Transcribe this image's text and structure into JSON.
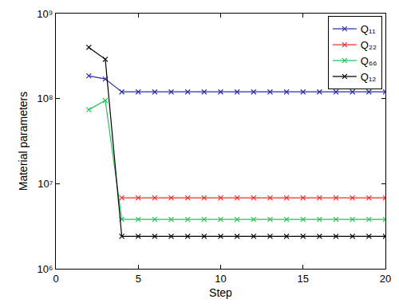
{
  "chart_data": {
    "type": "line",
    "x_label": "Step",
    "y_label": "Material parameters",
    "log": "y",
    "grid": false,
    "legend": "top right",
    "marker": "x",
    "line_style": "solid",
    "xlim": [
      0,
      20
    ],
    "xticks": [
      0,
      5,
      10,
      15,
      20
    ],
    "ylim": [
      1000000,
      1000000000
    ],
    "yticks": [
      {
        "value": 1000000,
        "label": "10⁶"
      },
      {
        "value": 10000000,
        "label": "10⁷"
      },
      {
        "value": 100000000,
        "label": "10⁸"
      },
      {
        "value": 1000000000,
        "label": "10⁹"
      }
    ],
    "series": [
      {
        "name": "Q₁₁",
        "color": "#2f2fa8",
        "x": [
          2,
          3,
          4,
          5,
          6,
          7,
          8,
          9,
          10,
          11,
          12,
          13,
          14,
          15,
          16,
          17,
          18,
          19,
          20
        ],
        "values": [
          185000000,
          170000000,
          120000000,
          120000000,
          120000000,
          120000000,
          120000000,
          120000000,
          120000000,
          120000000,
          120000000,
          120000000,
          120000000,
          120000000,
          120000000,
          120000000,
          120000000,
          120000000,
          120000000
        ]
      },
      {
        "name": "Q₂₂",
        "color": "#e8302a",
        "x": [
          4,
          5,
          6,
          7,
          8,
          9,
          10,
          11,
          12,
          13,
          14,
          15,
          16,
          17,
          18,
          19,
          20
        ],
        "values": [
          6800000,
          6800000,
          6800000,
          6800000,
          6800000,
          6800000,
          6800000,
          6800000,
          6800000,
          6800000,
          6800000,
          6800000,
          6800000,
          6800000,
          6800000,
          6800000,
          6800000
        ]
      },
      {
        "name": "Q₆₆",
        "color": "#22c45a",
        "x": [
          2,
          3,
          4,
          5,
          6,
          7,
          8,
          9,
          10,
          11,
          12,
          13,
          14,
          15,
          16,
          17,
          18,
          19,
          20
        ],
        "values": [
          74000000,
          95000000,
          3800000,
          3800000,
          3800000,
          3800000,
          3800000,
          3800000,
          3800000,
          3800000,
          3800000,
          3800000,
          3800000,
          3800000,
          3800000,
          3800000,
          3800000,
          3800000,
          3800000
        ]
      },
      {
        "name": "Q₁₂",
        "color": "#000000",
        "x": [
          2,
          3,
          4,
          5,
          6,
          7,
          8,
          9,
          10,
          11,
          12,
          13,
          14,
          15,
          16,
          17,
          18,
          19,
          20
        ],
        "values": [
          400000000,
          290000000,
          2400000,
          2400000,
          2400000,
          2400000,
          2400000,
          2400000,
          2400000,
          2400000,
          2400000,
          2400000,
          2400000,
          2400000,
          2400000,
          2400000,
          2400000,
          2400000,
          2400000
        ]
      }
    ]
  }
}
